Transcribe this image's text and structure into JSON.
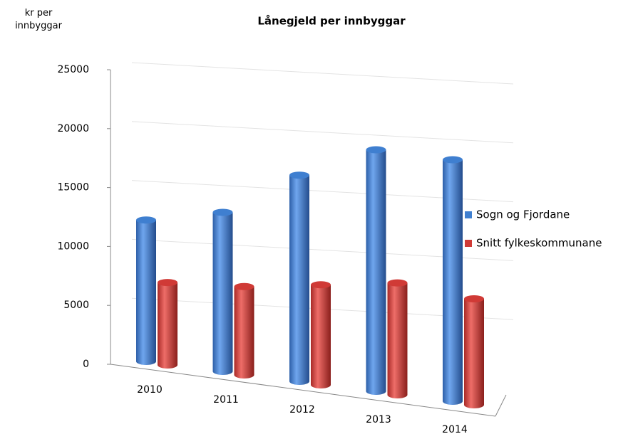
{
  "chart_data": {
    "type": "bar3d",
    "title": "Lånegjeld per innbyggar",
    "y_label": "kr per innbyggar",
    "categories": [
      "2010",
      "2011",
      "2012",
      "2013",
      "2014"
    ],
    "series": [
      {
        "name": "Sogn og Fjordane",
        "color": "#3f7fd0",
        "values": [
          12000,
          13500,
          17500,
          20500,
          20500
        ]
      },
      {
        "name": "Snitt fylkeskommunane",
        "color": "#d03a36",
        "values": [
          7000,
          7500,
          8500,
          9500,
          9000
        ]
      }
    ],
    "ylim": [
      0,
      25000
    ],
    "yticks": [
      0,
      5000,
      10000,
      15000,
      20000,
      25000
    ],
    "grid": true,
    "legend": "right"
  }
}
